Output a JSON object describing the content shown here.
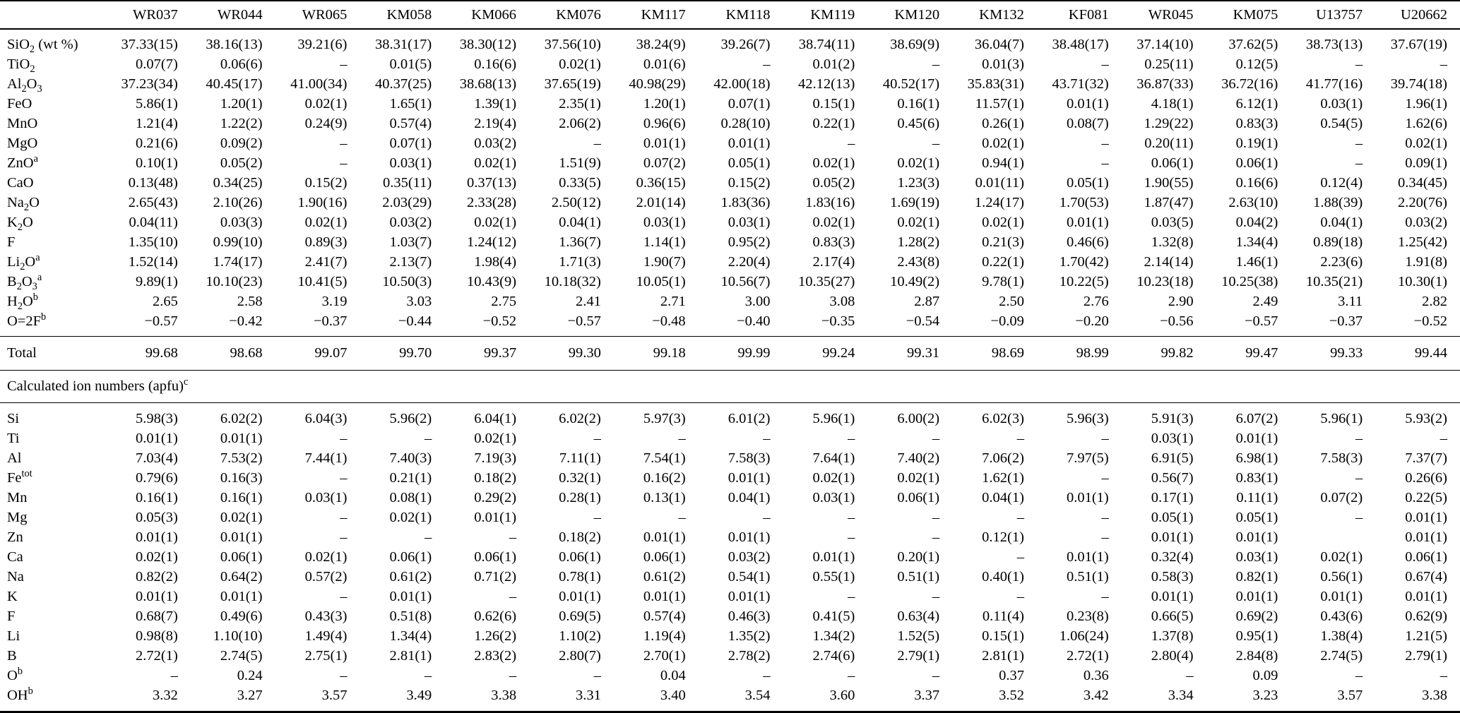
{
  "page": {
    "background": "#ffffff",
    "text_color": "#000000",
    "rule_color": "#000000"
  },
  "table": {
    "column_headers": [
      "WR037",
      "WR044",
      "WR065",
      "KM058",
      "KM066",
      "KM076",
      "KM117",
      "KM118",
      "KM119",
      "KM120",
      "KM132",
      "KF081",
      "WR045",
      "KM075",
      "U13757",
      "U20662"
    ],
    "oxide_section": {
      "rows": [
        {
          "label": "SiO_2_ (wt %)",
          "values": [
            "37.33(15)",
            "38.16(13)",
            "39.21(6)",
            "38.31(17)",
            "38.30(12)",
            "37.56(10)",
            "38.24(9)",
            "39.26(7)",
            "38.74(11)",
            "38.69(9)",
            "36.04(7)",
            "38.48(17)",
            "37.14(10)",
            "37.62(5)",
            "38.73(13)",
            "37.67(19)"
          ]
        },
        {
          "label": "TiO_2_",
          "values": [
            "0.07(7)",
            "0.06(6)",
            "–",
            "0.01(5)",
            "0.16(6)",
            "0.02(1)",
            "0.01(6)",
            "–",
            "0.01(2)",
            "–",
            "0.01(3)",
            "–",
            "0.25(11)",
            "0.12(5)",
            "–",
            "–"
          ]
        },
        {
          "label": "Al_2_O_3_",
          "values": [
            "37.23(34)",
            "40.45(17)",
            "41.00(34)",
            "40.37(25)",
            "38.68(13)",
            "37.65(19)",
            "40.98(29)",
            "42.00(18)",
            "42.12(13)",
            "40.52(17)",
            "35.83(31)",
            "43.71(32)",
            "36.87(33)",
            "36.72(16)",
            "41.77(16)",
            "39.74(18)"
          ]
        },
        {
          "label": "FeO",
          "values": [
            "5.86(1)",
            "1.20(1)",
            "0.02(1)",
            "1.65(1)",
            "1.39(1)",
            "2.35(1)",
            "1.20(1)",
            "0.07(1)",
            "0.15(1)",
            "0.16(1)",
            "11.57(1)",
            "0.01(1)",
            "4.18(1)",
            "6.12(1)",
            "0.03(1)",
            "1.96(1)"
          ]
        },
        {
          "label": "MnO",
          "values": [
            "1.21(4)",
            "1.22(2)",
            "0.24(9)",
            "0.57(4)",
            "2.19(4)",
            "2.06(2)",
            "0.96(6)",
            "0.28(10)",
            "0.22(1)",
            "0.45(6)",
            "0.26(1)",
            "0.08(7)",
            "1.29(22)",
            "0.83(3)",
            "0.54(5)",
            "1.62(6)"
          ]
        },
        {
          "label": "MgO",
          "values": [
            "0.21(6)",
            "0.09(2)",
            "–",
            "0.07(1)",
            "0.03(2)",
            "–",
            "0.01(1)",
            "0.01(1)",
            "–",
            "–",
            "0.02(1)",
            "–",
            "0.20(11)",
            "0.19(1)",
            "–",
            "0.02(1)"
          ]
        },
        {
          "label": "ZnO^a^",
          "values": [
            "0.10(1)",
            "0.05(2)",
            "–",
            "0.03(1)",
            "0.02(1)",
            "1.51(9)",
            "0.07(2)",
            "0.05(1)",
            "0.02(1)",
            "0.02(1)",
            "0.94(1)",
            "–",
            "0.06(1)",
            "0.06(1)",
            "–",
            "0.09(1)"
          ]
        },
        {
          "label": "CaO",
          "values": [
            "0.13(48)",
            "0.34(25)",
            "0.15(2)",
            "0.35(11)",
            "0.37(13)",
            "0.33(5)",
            "0.36(15)",
            "0.15(2)",
            "0.05(2)",
            "1.23(3)",
            "0.01(11)",
            "0.05(1)",
            "1.90(55)",
            "0.16(6)",
            "0.12(4)",
            "0.34(45)"
          ]
        },
        {
          "label": "Na_2_O",
          "values": [
            "2.65(43)",
            "2.10(26)",
            "1.90(16)",
            "2.03(29)",
            "2.33(28)",
            "2.50(12)",
            "2.01(14)",
            "1.83(36)",
            "1.83(16)",
            "1.69(19)",
            "1.24(17)",
            "1.70(53)",
            "1.87(47)",
            "2.63(10)",
            "1.88(39)",
            "2.20(76)"
          ]
        },
        {
          "label": "K_2_O",
          "values": [
            "0.04(11)",
            "0.03(3)",
            "0.02(1)",
            "0.03(2)",
            "0.02(1)",
            "0.04(1)",
            "0.03(1)",
            "0.03(1)",
            "0.02(1)",
            "0.02(1)",
            "0.02(1)",
            "0.01(1)",
            "0.03(5)",
            "0.04(2)",
            "0.04(1)",
            "0.03(2)"
          ]
        },
        {
          "label": "F",
          "values": [
            "1.35(10)",
            "0.99(10)",
            "0.89(3)",
            "1.03(7)",
            "1.24(12)",
            "1.36(7)",
            "1.14(1)",
            "0.95(2)",
            "0.83(3)",
            "1.28(2)",
            "0.21(3)",
            "0.46(6)",
            "1.32(8)",
            "1.34(4)",
            "0.89(18)",
            "1.25(42)"
          ]
        },
        {
          "label": "Li_2_O^a^",
          "values": [
            "1.52(14)",
            "1.74(17)",
            "2.41(7)",
            "2.13(7)",
            "1.98(4)",
            "1.71(3)",
            "1.90(7)",
            "2.20(4)",
            "2.17(4)",
            "2.43(8)",
            "0.22(1)",
            "1.70(42)",
            "2.14(14)",
            "1.46(1)",
            "2.23(6)",
            "1.91(8)"
          ]
        },
        {
          "label": "B_2_O_3_^a^",
          "values": [
            "9.89(1)",
            "10.10(23)",
            "10.41(5)",
            "10.50(3)",
            "10.43(9)",
            "10.18(32)",
            "10.05(1)",
            "10.56(7)",
            "10.35(27)",
            "10.49(2)",
            "9.78(1)",
            "10.22(5)",
            "10.23(18)",
            "10.25(38)",
            "10.35(21)",
            "10.30(1)"
          ]
        },
        {
          "label": "H_2_O^b^",
          "values": [
            "2.65",
            "2.58",
            "3.19",
            "3.03",
            "2.75",
            "2.41",
            "2.71",
            "3.00",
            "3.08",
            "2.87",
            "2.50",
            "2.76",
            "2.90",
            "2.49",
            "3.11",
            "2.82"
          ]
        },
        {
          "label": "O=2F^b^",
          "values": [
            "−0.57",
            "−0.42",
            "−0.37",
            "−0.44",
            "−0.52",
            "−0.57",
            "−0.48",
            "−0.40",
            "−0.35",
            "−0.54",
            "−0.09",
            "−0.20",
            "−0.56",
            "−0.57",
            "−0.37",
            "−0.52"
          ]
        }
      ]
    },
    "total_row": {
      "label": "Total",
      "values": [
        "99.68",
        "98.68",
        "99.07",
        "99.70",
        "99.37",
        "99.30",
        "99.18",
        "99.99",
        "99.24",
        "99.31",
        "98.69",
        "98.99",
        "99.82",
        "99.47",
        "99.33",
        "99.44"
      ]
    },
    "section_header": "Calculated ion numbers (apfu)^c^",
    "apfu_section": {
      "rows": [
        {
          "label": "Si",
          "values": [
            "5.98(3)",
            "6.02(2)",
            "6.04(3)",
            "5.96(2)",
            "6.04(1)",
            "6.02(2)",
            "5.97(3)",
            "6.01(2)",
            "5.96(1)",
            "6.00(2)",
            "6.02(3)",
            "5.96(3)",
            "5.91(3)",
            "6.07(2)",
            "5.96(1)",
            "5.93(2)"
          ]
        },
        {
          "label": "Ti",
          "values": [
            "0.01(1)",
            "0.01(1)",
            "–",
            "–",
            "0.02(1)",
            "–",
            "–",
            "–",
            "–",
            "–",
            "–",
            "–",
            "0.03(1)",
            "0.01(1)",
            "–",
            "–"
          ]
        },
        {
          "label": "Al",
          "values": [
            "7.03(4)",
            "7.53(2)",
            "7.44(1)",
            "7.40(3)",
            "7.19(3)",
            "7.11(1)",
            "7.54(1)",
            "7.58(3)",
            "7.64(1)",
            "7.40(2)",
            "7.06(2)",
            "7.97(5)",
            "6.91(5)",
            "6.98(1)",
            "7.58(3)",
            "7.37(7)"
          ]
        },
        {
          "label": "Fe^tot^",
          "values": [
            "0.79(6)",
            "0.16(3)",
            "–",
            "0.21(1)",
            "0.18(2)",
            "0.32(1)",
            "0.16(2)",
            "0.01(1)",
            "0.02(1)",
            "0.02(1)",
            "1.62(1)",
            "–",
            "0.56(7)",
            "0.83(1)",
            "–",
            "0.26(6)"
          ]
        },
        {
          "label": "Mn",
          "values": [
            "0.16(1)",
            "0.16(1)",
            "0.03(1)",
            "0.08(1)",
            "0.29(2)",
            "0.28(1)",
            "0.13(1)",
            "0.04(1)",
            "0.03(1)",
            "0.06(1)",
            "0.04(1)",
            "0.01(1)",
            "0.17(1)",
            "0.11(1)",
            "0.07(2)",
            "0.22(5)"
          ]
        },
        {
          "label": "Mg",
          "values": [
            "0.05(3)",
            "0.02(1)",
            "–",
            "0.02(1)",
            "0.01(1)",
            "–",
            "–",
            "–",
            "–",
            "–",
            "–",
            "–",
            "0.05(1)",
            "0.05(1)",
            "–",
            "0.01(1)"
          ]
        },
        {
          "label": "Zn",
          "values": [
            "0.01(1)",
            "0.01(1)",
            "–",
            "–",
            "–",
            "0.18(2)",
            "0.01(1)",
            "0.01(1)",
            "–",
            "–",
            "0.12(1)",
            "–",
            "0.01(1)",
            "0.01(1)",
            "",
            "0.01(1)"
          ]
        },
        {
          "label": "Ca",
          "values": [
            "0.02(1)",
            "0.06(1)",
            "0.02(1)",
            "0.06(1)",
            "0.06(1)",
            "0.06(1)",
            "0.06(1)",
            "0.03(2)",
            "0.01(1)",
            "0.20(1)",
            "–",
            "0.01(1)",
            "0.32(4)",
            "0.03(1)",
            "0.02(1)",
            "0.06(1)"
          ]
        },
        {
          "label": "Na",
          "values": [
            "0.82(2)",
            "0.64(2)",
            "0.57(2)",
            "0.61(2)",
            "0.71(2)",
            "0.78(1)",
            "0.61(2)",
            "0.54(1)",
            "0.55(1)",
            "0.51(1)",
            "0.40(1)",
            "0.51(1)",
            "0.58(3)",
            "0.82(1)",
            "0.56(1)",
            "0.67(4)"
          ]
        },
        {
          "label": "K",
          "values": [
            "0.01(1)",
            "0.01(1)",
            "–",
            "0.01(1)",
            "–",
            "0.01(1)",
            "0.01(1)",
            "0.01(1)",
            "–",
            "–",
            "–",
            "–",
            "0.01(1)",
            "0.01(1)",
            "0.01(1)",
            "0.01(1)"
          ]
        },
        {
          "label": "F",
          "values": [
            "0.68(7)",
            "0.49(6)",
            "0.43(3)",
            "0.51(8)",
            "0.62(6)",
            "0.69(5)",
            "0.57(4)",
            "0.46(3)",
            "0.41(5)",
            "0.63(4)",
            "0.11(4)",
            "0.23(8)",
            "0.66(5)",
            "0.69(2)",
            "0.43(6)",
            "0.62(9)"
          ]
        },
        {
          "label": "Li",
          "values": [
            "0.98(8)",
            "1.10(10)",
            "1.49(4)",
            "1.34(4)",
            "1.26(2)",
            "1.10(2)",
            "1.19(4)",
            "1.35(2)",
            "1.34(2)",
            "1.52(5)",
            "0.15(1)",
            "1.06(24)",
            "1.37(8)",
            "0.95(1)",
            "1.38(4)",
            "1.21(5)"
          ]
        },
        {
          "label": "B",
          "values": [
            "2.72(1)",
            "2.74(5)",
            "2.75(1)",
            "2.81(1)",
            "2.83(2)",
            "2.80(7)",
            "2.70(1)",
            "2.78(2)",
            "2.74(6)",
            "2.79(1)",
            "2.81(1)",
            "2.72(1)",
            "2.80(4)",
            "2.84(8)",
            "2.74(5)",
            "2.79(1)"
          ]
        },
        {
          "label": "O^b^",
          "values": [
            "–",
            "0.24",
            "–",
            "–",
            "–",
            "–",
            "0.04",
            "–",
            "–",
            "–",
            "0.37",
            "0.36",
            "–",
            "0.09",
            "–",
            "–"
          ]
        },
        {
          "label": "OH^b^",
          "values": [
            "3.32",
            "3.27",
            "3.57",
            "3.49",
            "3.38",
            "3.31",
            "3.40",
            "3.54",
            "3.60",
            "3.37",
            "3.52",
            "3.42",
            "3.34",
            "3.23",
            "3.57",
            "3.38"
          ]
        }
      ]
    }
  }
}
